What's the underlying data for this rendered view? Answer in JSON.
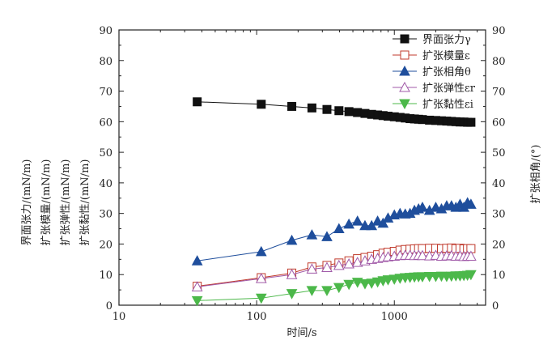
{
  "chart_data": {
    "type": "line",
    "xlabel": "时间/s",
    "x_scale": "log",
    "xlim": [
      10,
      4600
    ],
    "x_ticks": [
      "10",
      "100",
      "1000"
    ],
    "ylabel_left": [
      "界面张力/(mN/m)",
      "扩张模量/(mN/m)",
      "扩张弹性/(mN/m)",
      "扩张黏性/(mN/m)"
    ],
    "ylabel_right": "扩张相角/(°)",
    "ylim": [
      0,
      90
    ],
    "y_ticks": [
      "0",
      "10",
      "20",
      "30",
      "40",
      "50",
      "60",
      "70",
      "80",
      "90"
    ],
    "legend_position": "top-right",
    "grid": false,
    "x": [
      37,
      108,
      180,
      252,
      324,
      396,
      468,
      540,
      612,
      684,
      756,
      828,
      900,
      1000,
      1100,
      1200,
      1300,
      1400,
      1500,
      1600,
      1800,
      2000,
      2200,
      2400,
      2600,
      2800,
      3000,
      3200,
      3400,
      3600
    ],
    "series": [
      {
        "name": "界面张力γ",
        "axis": "left",
        "marker": "square-filled",
        "color": "#111111",
        "values": [
          66.5,
          65.7,
          65.0,
          64.5,
          64.0,
          63.6,
          63.3,
          63.0,
          62.7,
          62.4,
          62.2,
          62.0,
          61.8,
          61.6,
          61.4,
          61.2,
          61.0,
          60.9,
          60.8,
          60.7,
          60.5,
          60.4,
          60.3,
          60.2,
          60.1,
          60.0,
          59.9,
          59.9,
          59.8,
          59.8
        ]
      },
      {
        "name": "扩张模量ε",
        "axis": "left",
        "marker": "square-open",
        "color": "#c0392b",
        "values": [
          6.2,
          9.0,
          10.5,
          12.5,
          13.0,
          13.8,
          14.5,
          15.2,
          15.6,
          16.0,
          16.5,
          17.0,
          17.3,
          17.6,
          18.0,
          18.2,
          18.3,
          18.4,
          18.5,
          18.5,
          18.6,
          18.6,
          18.5,
          18.6,
          18.7,
          18.5,
          18.6,
          18.4,
          18.5,
          18.5
        ]
      },
      {
        "name": "扩张相角θ",
        "axis": "right",
        "marker": "triangle-up-filled",
        "color": "#1f4e9c",
        "values": [
          14.5,
          17.5,
          21.2,
          23.0,
          22.4,
          25.0,
          26.5,
          27.5,
          26.0,
          26.0,
          27.5,
          26.8,
          28.5,
          29.5,
          30.0,
          29.8,
          30.0,
          31.0,
          31.5,
          32.0,
          31.0,
          32.0,
          31.5,
          32.5,
          32.5,
          32.0,
          33.0,
          32.0,
          33.5,
          33.0
        ]
      },
      {
        "name": "扩张弹性εr",
        "axis": "left",
        "marker": "triangle-up-open",
        "color": "#a05aa8",
        "values": [
          6.0,
          8.7,
          10.0,
          11.8,
          12.3,
          13.0,
          13.5,
          14.0,
          14.5,
          15.0,
          15.3,
          15.6,
          15.8,
          16.0,
          16.2,
          16.3,
          16.3,
          16.2,
          16.3,
          16.2,
          16.1,
          16.3,
          16.0,
          16.1,
          16.2,
          16.0,
          16.1,
          15.9,
          16.0,
          16.0
        ]
      },
      {
        "name": "扩张黏性εi",
        "axis": "left",
        "marker": "triangle-down-filled",
        "color": "#4cb84a",
        "values": [
          1.5,
          2.3,
          3.8,
          4.8,
          4.8,
          5.8,
          6.8,
          7.5,
          7.0,
          7.2,
          7.6,
          8.0,
          8.3,
          8.5,
          8.8,
          9.0,
          9.1,
          9.2,
          9.3,
          9.3,
          9.4,
          9.4,
          9.5,
          9.4,
          9.5,
          9.6,
          9.6,
          9.7,
          9.8,
          10.0
        ]
      }
    ]
  }
}
